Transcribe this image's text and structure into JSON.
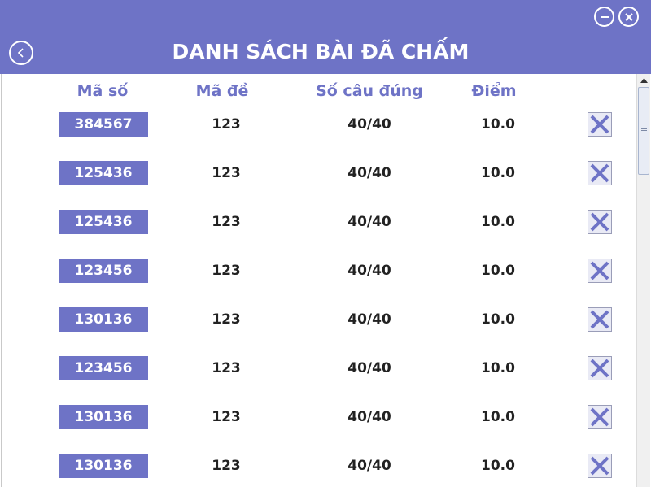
{
  "window": {
    "title": "DANH SÁCH BÀI ĐÃ CHẤM",
    "accent_color": "#6e73c6",
    "controls": [
      "back-icon",
      "minimize-icon",
      "close-icon"
    ]
  },
  "table": {
    "headers": {
      "student_id": "Mã số",
      "exam_code": "Mã đề",
      "correct": "Số câu đúng",
      "score": "Điểm"
    },
    "rows": [
      {
        "student_id": "384567",
        "exam_code": "123",
        "correct": "40/40",
        "score": "10.0"
      },
      {
        "student_id": "125436",
        "exam_code": "123",
        "correct": "40/40",
        "score": "10.0"
      },
      {
        "student_id": "125436",
        "exam_code": "123",
        "correct": "40/40",
        "score": "10.0"
      },
      {
        "student_id": "123456",
        "exam_code": "123",
        "correct": "40/40",
        "score": "10.0"
      },
      {
        "student_id": "130136",
        "exam_code": "123",
        "correct": "40/40",
        "score": "10.0"
      },
      {
        "student_id": "123456",
        "exam_code": "123",
        "correct": "40/40",
        "score": "10.0"
      },
      {
        "student_id": "130136",
        "exam_code": "123",
        "correct": "40/40",
        "score": "10.0"
      },
      {
        "student_id": "130136",
        "exam_code": "123",
        "correct": "40/40",
        "score": "10.0"
      }
    ],
    "row_action_icon": "delete-x-icon"
  }
}
